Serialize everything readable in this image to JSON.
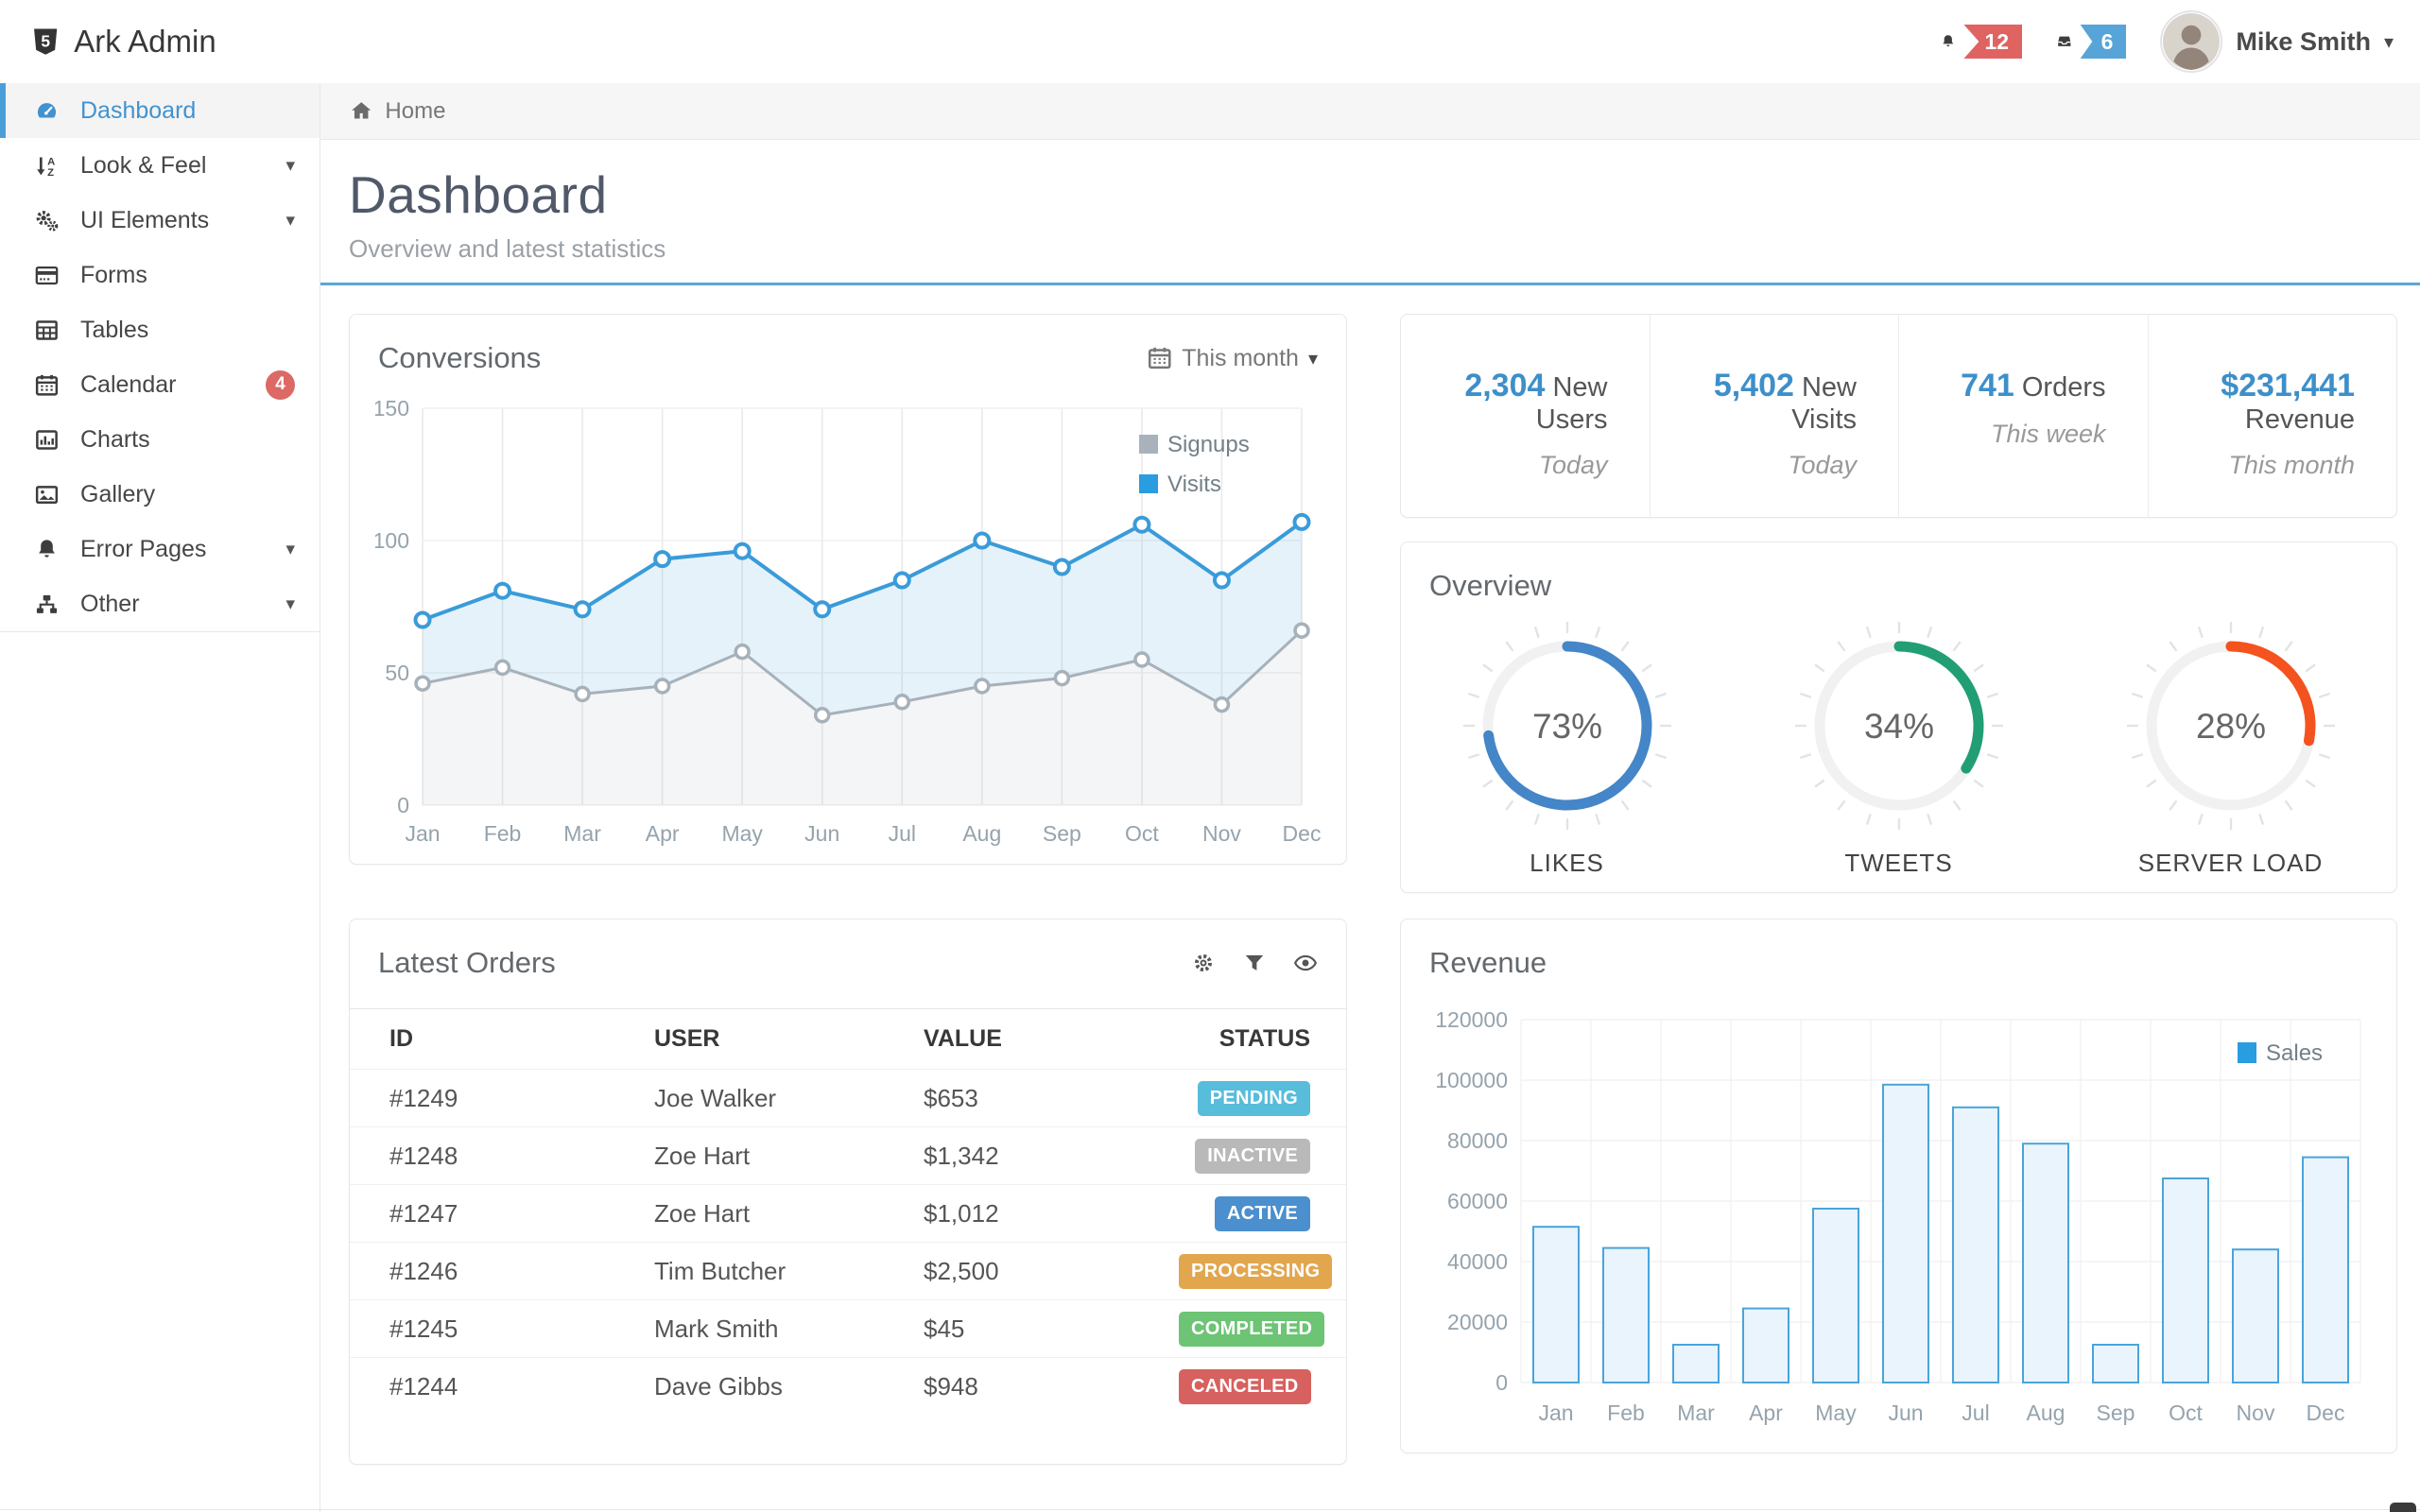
{
  "header": {
    "app_title": "Ark Admin",
    "notifications_count": "12",
    "messages_count": "6",
    "user_name": "Mike Smith"
  },
  "sidebar": {
    "items": [
      {
        "label": "Dashboard",
        "icon": "dashboard",
        "active": true
      },
      {
        "label": "Look & Feel",
        "icon": "sort-alpha",
        "expandable": true
      },
      {
        "label": "UI Elements",
        "icon": "gears",
        "expandable": true
      },
      {
        "label": "Forms",
        "icon": "forms"
      },
      {
        "label": "Tables",
        "icon": "table"
      },
      {
        "label": "Calendar",
        "icon": "calendar",
        "badge": "4"
      },
      {
        "label": "Charts",
        "icon": "bar-chart"
      },
      {
        "label": "Gallery",
        "icon": "image"
      },
      {
        "label": "Error Pages",
        "icon": "bell",
        "expandable": true
      },
      {
        "label": "Other",
        "icon": "sitemap",
        "expandable": true
      }
    ]
  },
  "breadcrumb": {
    "home": "Home"
  },
  "page": {
    "title": "Dashboard",
    "subtitle": "Overview and latest statistics"
  },
  "panels": {
    "conversions": {
      "title": "Conversions",
      "range_label": "This month"
    },
    "stats": {
      "items": [
        {
          "value": "2,304",
          "label": "New Users",
          "period": "Today"
        },
        {
          "value": "5,402",
          "label": "New Visits",
          "period": "Today"
        },
        {
          "value": "741",
          "label": "Orders",
          "period": "This week"
        },
        {
          "value": "$231,441",
          "label": "Revenue",
          "period": "This month"
        }
      ]
    },
    "overview": {
      "title": "Overview"
    },
    "orders": {
      "title": "Latest Orders",
      "columns": [
        "ID",
        "USER",
        "VALUE",
        "STATUS"
      ],
      "rows": [
        {
          "id": "#1249",
          "user": "Joe Walker",
          "value": "$653",
          "status": "PENDING"
        },
        {
          "id": "#1248",
          "user": "Zoe Hart",
          "value": "$1,342",
          "status": "INACTIVE"
        },
        {
          "id": "#1247",
          "user": "Zoe Hart",
          "value": "$1,012",
          "status": "ACTIVE"
        },
        {
          "id": "#1246",
          "user": "Tim Butcher",
          "value": "$2,500",
          "status": "PROCESSING"
        },
        {
          "id": "#1245",
          "user": "Mark Smith",
          "value": "$45",
          "status": "COMPLETED"
        },
        {
          "id": "#1244",
          "user": "Dave Gibbs",
          "value": "$948",
          "status": "CANCELED"
        }
      ],
      "status_colors": {
        "PENDING": "#58bcdb",
        "INACTIVE": "#b9b9b9",
        "ACTIVE": "#4b8fce",
        "PROCESSING": "#e2a64f",
        "COMPLETED": "#6cc474",
        "CANCELED": "#d6615e"
      }
    },
    "revenue": {
      "title": "Revenue"
    }
  },
  "chart_data": [
    {
      "id": "conversions",
      "type": "area",
      "title": "Conversions",
      "x": [
        "Jan",
        "Feb",
        "Mar",
        "Apr",
        "May",
        "Jun",
        "Jul",
        "Aug",
        "Sep",
        "Oct",
        "Nov",
        "Dec"
      ],
      "series": [
        {
          "name": "Signups",
          "color": "#a6b1ba",
          "legend_color": "#a9b2bb",
          "values": [
            46,
            52,
            42,
            45,
            58,
            34,
            39,
            45,
            48,
            55,
            38,
            66
          ]
        },
        {
          "name": "Visits",
          "color": "#3a9bd9",
          "legend_color": "#2a9ce0",
          "values": [
            70,
            81,
            74,
            93,
            96,
            74,
            85,
            100,
            90,
            106,
            85,
            107
          ]
        }
      ],
      "ylim": [
        0,
        150
      ],
      "yticks": [
        0,
        50,
        100,
        150
      ],
      "grid": true,
      "legend_position": "top-right",
      "range_label": "This month"
    },
    {
      "id": "overview_gauges",
      "type": "gauge",
      "title": "Overview",
      "items": [
        {
          "label": "LIKES",
          "percent": 73,
          "display": "73%",
          "color": "#4486c7"
        },
        {
          "label": "TWEETS",
          "percent": 34,
          "display": "34%",
          "color": "#229e74"
        },
        {
          "label": "SERVER LOAD",
          "percent": 28,
          "display": "28%",
          "color": "#f4521e"
        }
      ]
    },
    {
      "id": "revenue",
      "type": "bar",
      "title": "Revenue",
      "categories": [
        "Jan",
        "Feb",
        "Mar",
        "Apr",
        "May",
        "Jun",
        "Jul",
        "Aug",
        "Sep",
        "Oct",
        "Nov",
        "Dec"
      ],
      "series": [
        {
          "name": "Sales",
          "values": [
            51500,
            44500,
            12500,
            24500,
            57500,
            98500,
            91000,
            79000,
            12500,
            67500,
            44000,
            74500
          ],
          "fill": "#e9f4fc",
          "border": "#4aa4da",
          "legend_color": "#2a9ce0"
        }
      ],
      "ylim": [
        0,
        120000
      ],
      "yticks": [
        0,
        20000,
        40000,
        60000,
        80000,
        100000,
        120000
      ],
      "grid": true,
      "legend_position": "top-right"
    }
  ],
  "colors": {
    "accent_blue": "#4292cf",
    "active_bar": "#4a9fd8",
    "heading_divider": "#5aa7d8",
    "stat_number": "#3d8fc9",
    "badge_red": "#df6361",
    "badge_blue": "#57a5d8",
    "calendar_badge": "#dc6965"
  }
}
